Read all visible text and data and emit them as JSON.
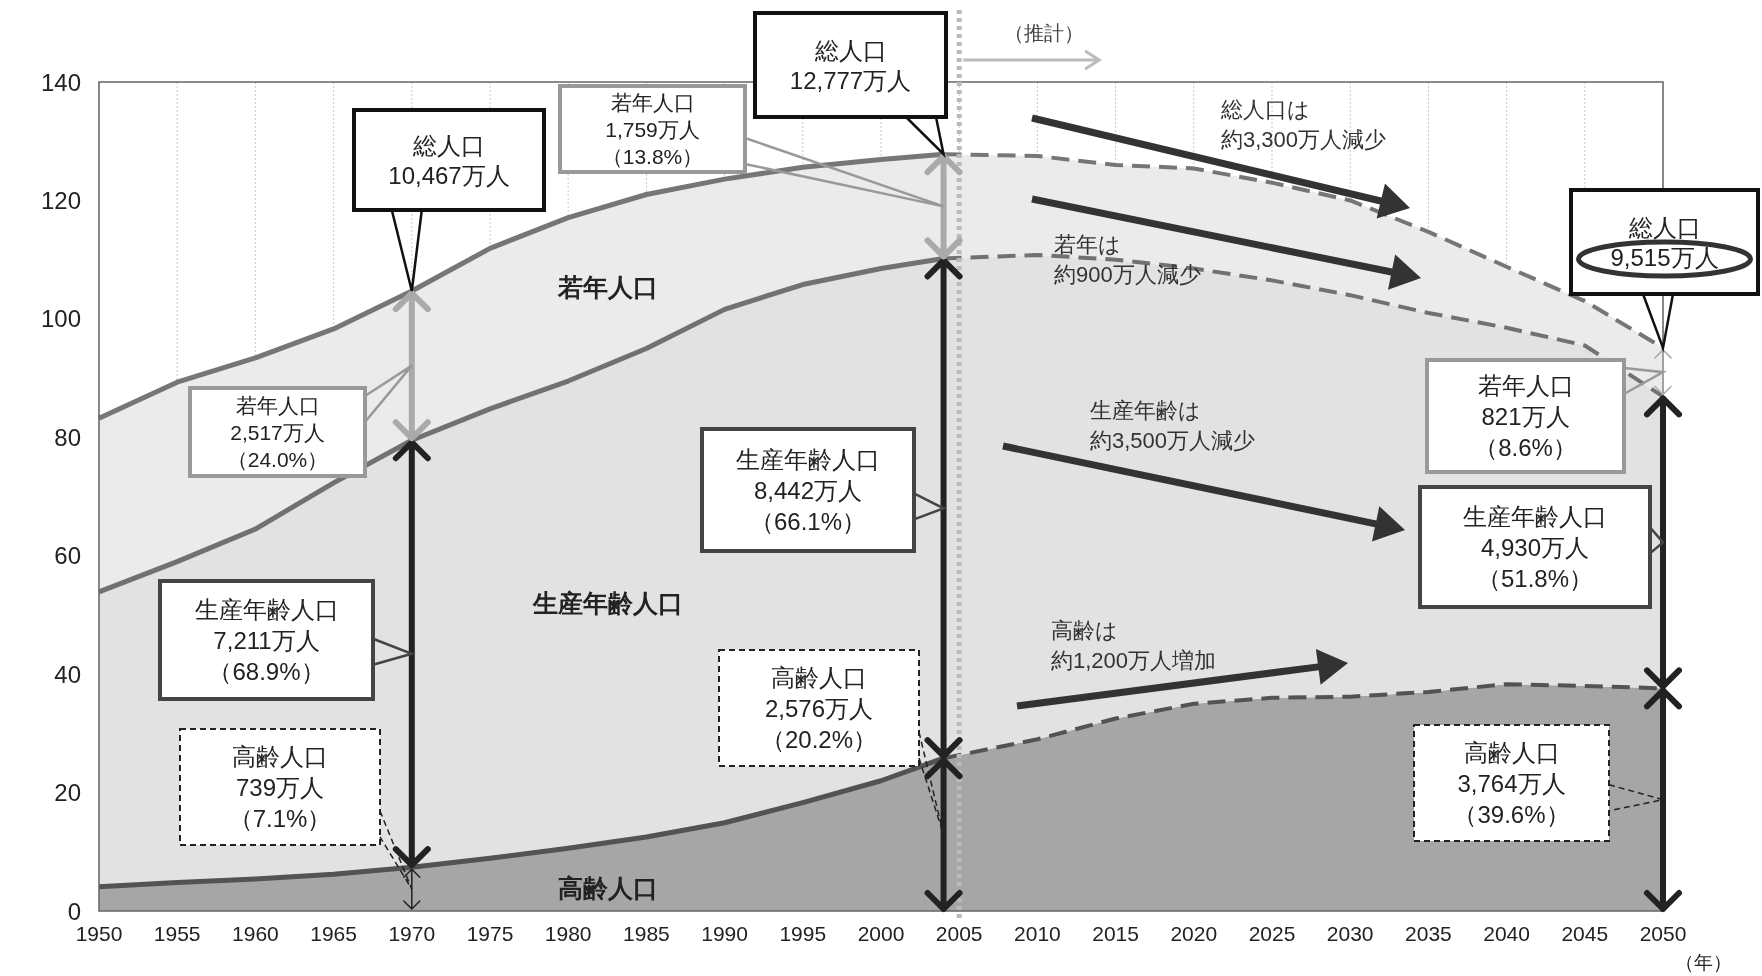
{
  "chart_data": {
    "type": "area",
    "stacked": true,
    "xlabel": "（年）",
    "x": [
      1950,
      1955,
      1960,
      1965,
      1970,
      1975,
      1980,
      1985,
      1990,
      1995,
      2000,
      2004,
      2010,
      2015,
      2020,
      2025,
      2030,
      2035,
      2040,
      2045,
      2050
    ],
    "series": [
      {
        "name": "高齢人口",
        "color": "#a6a6a6",
        "values": [
          4.1,
          4.8,
          5.4,
          6.2,
          7.4,
          8.9,
          10.6,
          12.5,
          14.9,
          18.3,
          22.0,
          25.8,
          29.0,
          32.5,
          35.0,
          36.0,
          36.2,
          37.0,
          38.3,
          38.0,
          37.6
        ]
      },
      {
        "name": "生産年齢人口",
        "color": "#e2e2e2",
        "values": [
          49.8,
          54.2,
          59.1,
          66.1,
          72.1,
          75.9,
          78.9,
          82.5,
          86.7,
          87.5,
          86.5,
          84.4,
          81.8,
          77.5,
          73.5,
          70.5,
          67.8,
          64.0,
          60.2,
          57.5,
          49.3
        ]
      },
      {
        "name": "若年人口",
        "color": "#ebebeb",
        "values": [
          29.3,
          30.3,
          28.9,
          26.0,
          25.2,
          27.1,
          27.6,
          26.0,
          22.0,
          19.8,
          18.4,
          17.6,
          16.7,
          16.0,
          16.9,
          16.5,
          16.0,
          13.7,
          10.3,
          7.5,
          8.2
        ]
      }
    ],
    "xlim": [
      1950,
      2050
    ],
    "ylim": [
      0,
      140
    ],
    "xticks": [
      1950,
      1955,
      1960,
      1965,
      1970,
      1975,
      1980,
      1985,
      1990,
      1995,
      2000,
      2005,
      2010,
      2015,
      2020,
      2025,
      2030,
      2035,
      2040,
      2045,
      2050
    ],
    "yticks": [
      0,
      20,
      40,
      60,
      80,
      100,
      120,
      140
    ],
    "grid": "x",
    "ref_lines": [
      {
        "axis": "x",
        "value": 2005,
        "label": "（推計）",
        "color": "#bbbbbb",
        "line_style": "dotted"
      }
    ],
    "annotations": [
      "総人口10,467万人",
      "若年人口2,517万人（24.0%）",
      "生産年齢人口7,211万人（68.9%）",
      "高齢人口739万人（7.1%）",
      {
        "text": "総人口12,777万人",
        "x": 2004,
        "y": 127.8
      },
      "若年人口1,759万人（13.8%）",
      "生産年齢人口8,442万人（66.1%）",
      "高齢人口2,576万人（20.2%）",
      "総人口9,515万人",
      "若年人口821万人（8.6%）",
      "生産年齢人口4,930万人（51.8%）",
      "高齢人口3,764万人（39.6%）",
      "総人口は約3,300万人減少",
      "若年は約900万人減少",
      "生産年齢は約3,500万人減少",
      "高齢は約1,200万人増加"
    ]
  }
}
